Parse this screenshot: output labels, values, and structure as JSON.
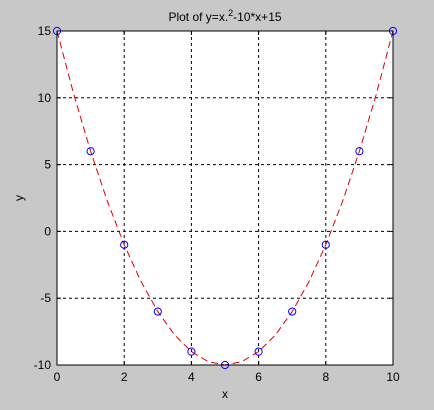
{
  "chart_data": {
    "type": "line",
    "title": {
      "main": "Plot of y=x.",
      "superscript": "2",
      "rest": "-10*x+15"
    },
    "xlabel": "x",
    "ylabel": "y",
    "xlim": [
      0,
      10
    ],
    "ylim": [
      -10,
      15
    ],
    "xticks": [
      0,
      2,
      4,
      6,
      8,
      10
    ],
    "yticks": [
      -10,
      -5,
      0,
      5,
      10,
      15
    ],
    "grid": true,
    "series": [
      {
        "style": "red dashed curve",
        "color": "#e00000",
        "x": [
          0,
          0.5,
          1,
          1.5,
          2,
          2.5,
          3,
          3.5,
          4,
          4.5,
          5,
          5.5,
          6,
          6.5,
          7,
          7.5,
          8,
          8.5,
          9,
          9.5,
          10
        ],
        "y": [
          15,
          10.25,
          6,
          2.25,
          -1,
          -3.75,
          -6,
          -7.75,
          -9,
          -9.75,
          -10,
          -9.75,
          -9,
          -7.75,
          -6,
          -3.75,
          -1,
          2.25,
          6,
          10.25,
          15
        ]
      },
      {
        "style": "blue circle markers",
        "color": "#0000ff",
        "x": [
          0,
          1,
          2,
          3,
          4,
          5,
          6,
          7,
          8,
          9,
          10
        ],
        "y": [
          15,
          6,
          -1,
          -6,
          -9,
          -10,
          -9,
          -6,
          -1,
          6,
          15
        ]
      }
    ],
    "colors": {
      "background": "#c8c8c8",
      "axes": "#ffffff",
      "grid": "#000000"
    }
  }
}
